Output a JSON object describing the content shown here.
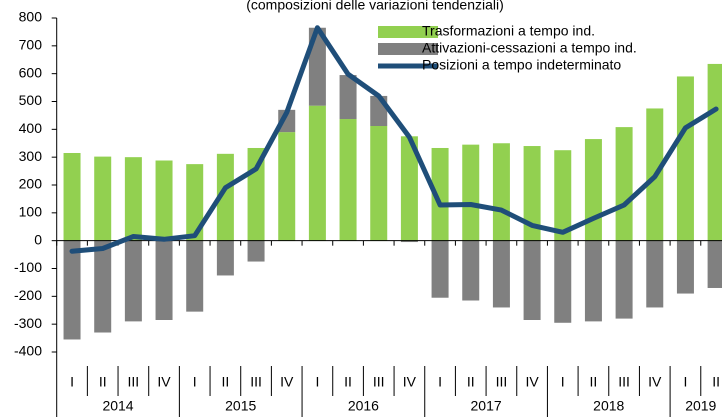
{
  "chart_data": {
    "type": "stacked_bar_line",
    "subtitle": "(composizioni delle variazioni tendenziali)",
    "groups": [
      {
        "label": "2014",
        "categories": [
          "I",
          "II",
          "III",
          "IV"
        ]
      },
      {
        "label": "2015",
        "categories": [
          "I",
          "II",
          "III",
          "IV"
        ]
      },
      {
        "label": "2016",
        "categories": [
          "I",
          "II",
          "III",
          "IV"
        ]
      },
      {
        "label": "2017",
        "categories": [
          "I",
          "II",
          "III",
          "IV"
        ]
      },
      {
        "label": "2018",
        "categories": [
          "I",
          "II",
          "III",
          "IV"
        ]
      },
      {
        "label": "2019",
        "categories": [
          "I",
          "II"
        ]
      }
    ],
    "series": [
      {
        "name": "Trasformazioni a tempo ind.",
        "kind": "bar",
        "color": "#92d050",
        "values": [
          315,
          302,
          300,
          288,
          275,
          312,
          333,
          390,
          485,
          437,
          412,
          375,
          333,
          345,
          350,
          340,
          325,
          365,
          408,
          475,
          590,
          635
        ]
      },
      {
        "name": "Attivazioni-cessazioni a tempo ind.",
        "kind": "bar",
        "color": "#808080",
        "values": [
          -355,
          -330,
          -290,
          -285,
          -255,
          -125,
          -75,
          80,
          280,
          158,
          108,
          -5,
          -205,
          -215,
          -240,
          -285,
          -295,
          -290,
          -280,
          -240,
          -190,
          -170
        ]
      },
      {
        "name": "Posizioni a tempo indeterminato",
        "kind": "line",
        "color": "#1f4e79",
        "values": [
          -38,
          -28,
          15,
          5,
          18,
          190,
          258,
          460,
          765,
          598,
          520,
          372,
          128,
          130,
          110,
          55,
          30,
          80,
          128,
          230,
          405,
          473
        ]
      }
    ],
    "ylim": [
      -400,
      800
    ],
    "yticks": [
      -400,
      -300,
      -200,
      -100,
      0,
      100,
      200,
      300,
      400,
      500,
      600,
      700,
      800
    ]
  }
}
